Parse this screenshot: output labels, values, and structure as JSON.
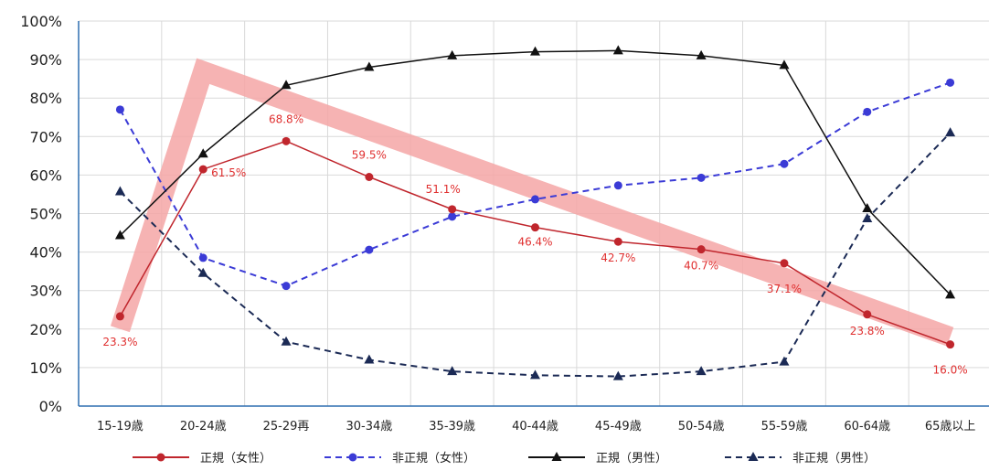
{
  "chart_data": {
    "type": "line",
    "categories": [
      "15-19歳",
      "20-24歳",
      "25-29再",
      "30-34歳",
      "35-39歳",
      "40-44歳",
      "45-49歳",
      "50-54歳",
      "55-59歳",
      "60-64歳",
      "65歳以上"
    ],
    "ylim": [
      0,
      100
    ],
    "yticks": [
      "0%",
      "10%",
      "20%",
      "30%",
      "40%",
      "50%",
      "60%",
      "70%",
      "80%",
      "90%",
      "100%"
    ],
    "grid": true,
    "legend_position": "bottom",
    "series": [
      {
        "name": "正規（女性）",
        "color": "#c0262d",
        "dash": "solid",
        "marker": "circle",
        "values": [
          23.3,
          61.5,
          68.8,
          59.5,
          51.1,
          46.4,
          42.7,
          40.7,
          37.1,
          23.8,
          16.0
        ],
        "labels": [
          "23.3%",
          "61.5%",
          "68.8%",
          "59.5%",
          "51.1%",
          "46.4%",
          "42.7%",
          "40.7%",
          "37.1%",
          "23.8%",
          "16.0%"
        ]
      },
      {
        "name": "非正規（女性）",
        "color": "#3b3bd6",
        "dash": "dashed",
        "marker": "circle",
        "values": [
          77.0,
          38.5,
          31.2,
          40.6,
          49.2,
          53.7,
          57.3,
          59.3,
          62.9,
          76.4,
          84.0
        ]
      },
      {
        "name": "正規（男性）",
        "color": "#111111",
        "dash": "solid",
        "marker": "triangle",
        "values": [
          44.3,
          65.5,
          83.3,
          88.0,
          91.0,
          92.0,
          92.3,
          91.0,
          88.5,
          51.3,
          28.9
        ]
      },
      {
        "name": "非正規（男性）",
        "color": "#1b2a55",
        "dash": "dashed",
        "marker": "triangle",
        "values": [
          55.7,
          34.5,
          16.7,
          12.0,
          9.0,
          8.0,
          7.7,
          9.0,
          11.5,
          48.7,
          71.0
        ]
      }
    ],
    "highlight": {
      "color": "#f4a6a6",
      "points": [
        [
          0,
          20
        ],
        [
          1,
          87
        ],
        [
          10,
          18
        ]
      ]
    }
  }
}
